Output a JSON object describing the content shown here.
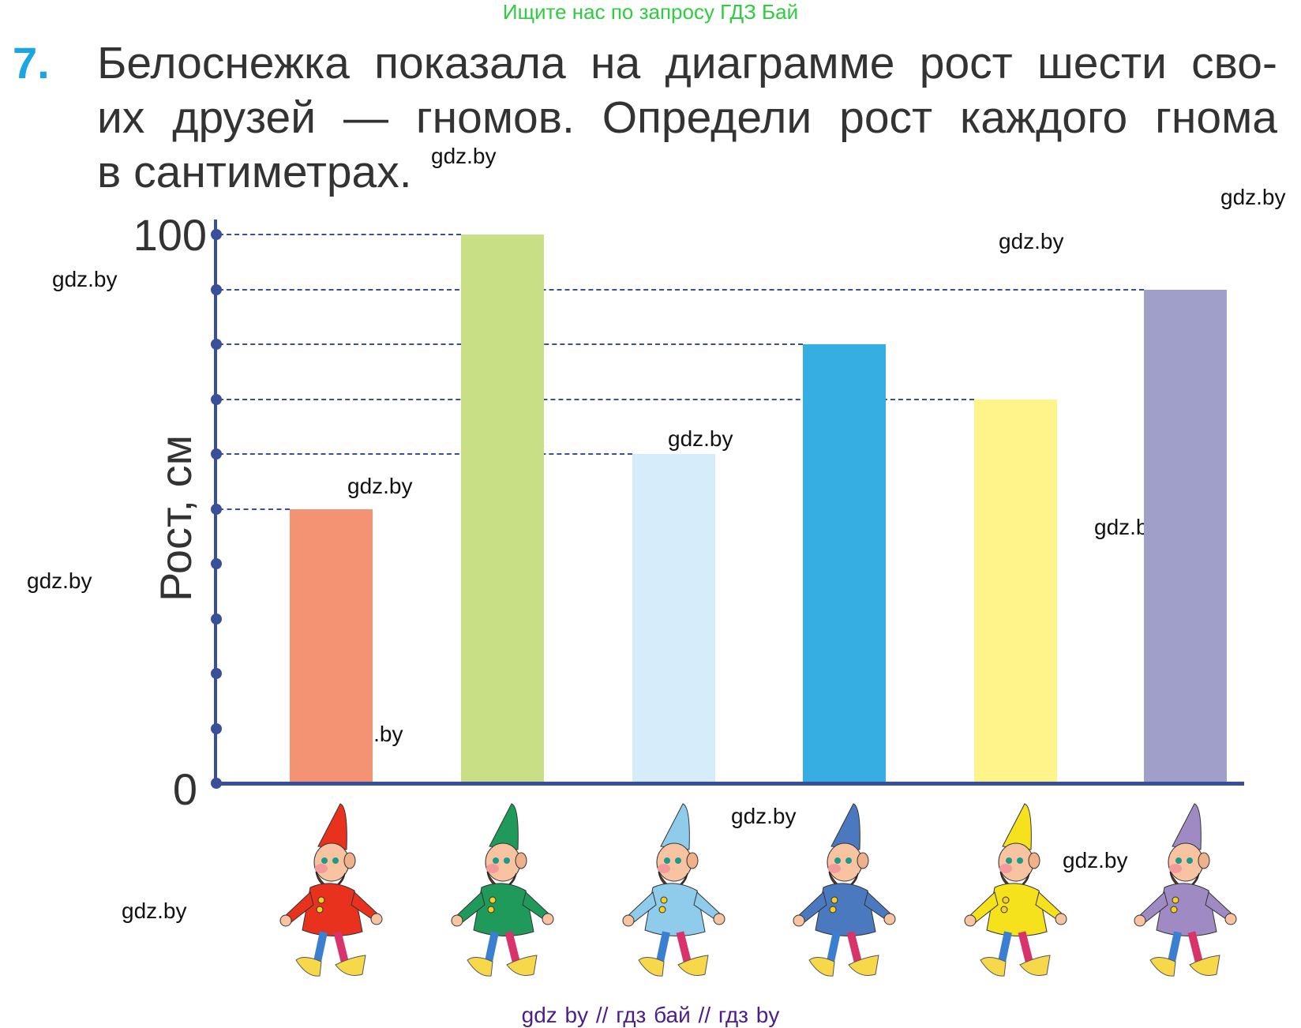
{
  "banner": "Ищите нас по запросу ГДЗ Бай",
  "task": {
    "number": "7.",
    "lines": [
      "Белоснежка показала на диаграмме рост шести сво-",
      "их друзей — гномов. Определи рост каждого гнома",
      "в сантиметрах."
    ]
  },
  "watermarks": [
    "gdz.by",
    "gdz.by",
    "gdz.by",
    "gdz.by",
    "gdz.by",
    "gdz.by",
    "gdz.by",
    "gdz.by",
    "gdz.by",
    "gdz.by",
    "gdz.by",
    "gdz.by"
  ],
  "footer": "gdz by  //  гдз бай  //  гдз by",
  "chart_data": {
    "type": "bar",
    "title": "",
    "xlabel": "",
    "ylabel": "Рост, см",
    "ylim": [
      0,
      100
    ],
    "y_tick_labels": [
      "0",
      "100"
    ],
    "y_tick_step": 10,
    "grid": "dashed guide lines from axis to bar tops",
    "categories": [
      "Красный гном",
      "Зелёный гном",
      "Голубой гном",
      "Синий гном",
      "Жёлтый гном",
      "Фиолетовый гном"
    ],
    "values": [
      50,
      100,
      60,
      80,
      70,
      90
    ],
    "colors": [
      "#f49374",
      "#c8df86",
      "#d6ecfa",
      "#37aee2",
      "#fff489",
      "#a09fc9"
    ],
    "gnome_colors": [
      "#e8321e",
      "#1f9a5a",
      "#8fcbea",
      "#4b79c0",
      "#f5e11c",
      "#a08ac4"
    ]
  }
}
